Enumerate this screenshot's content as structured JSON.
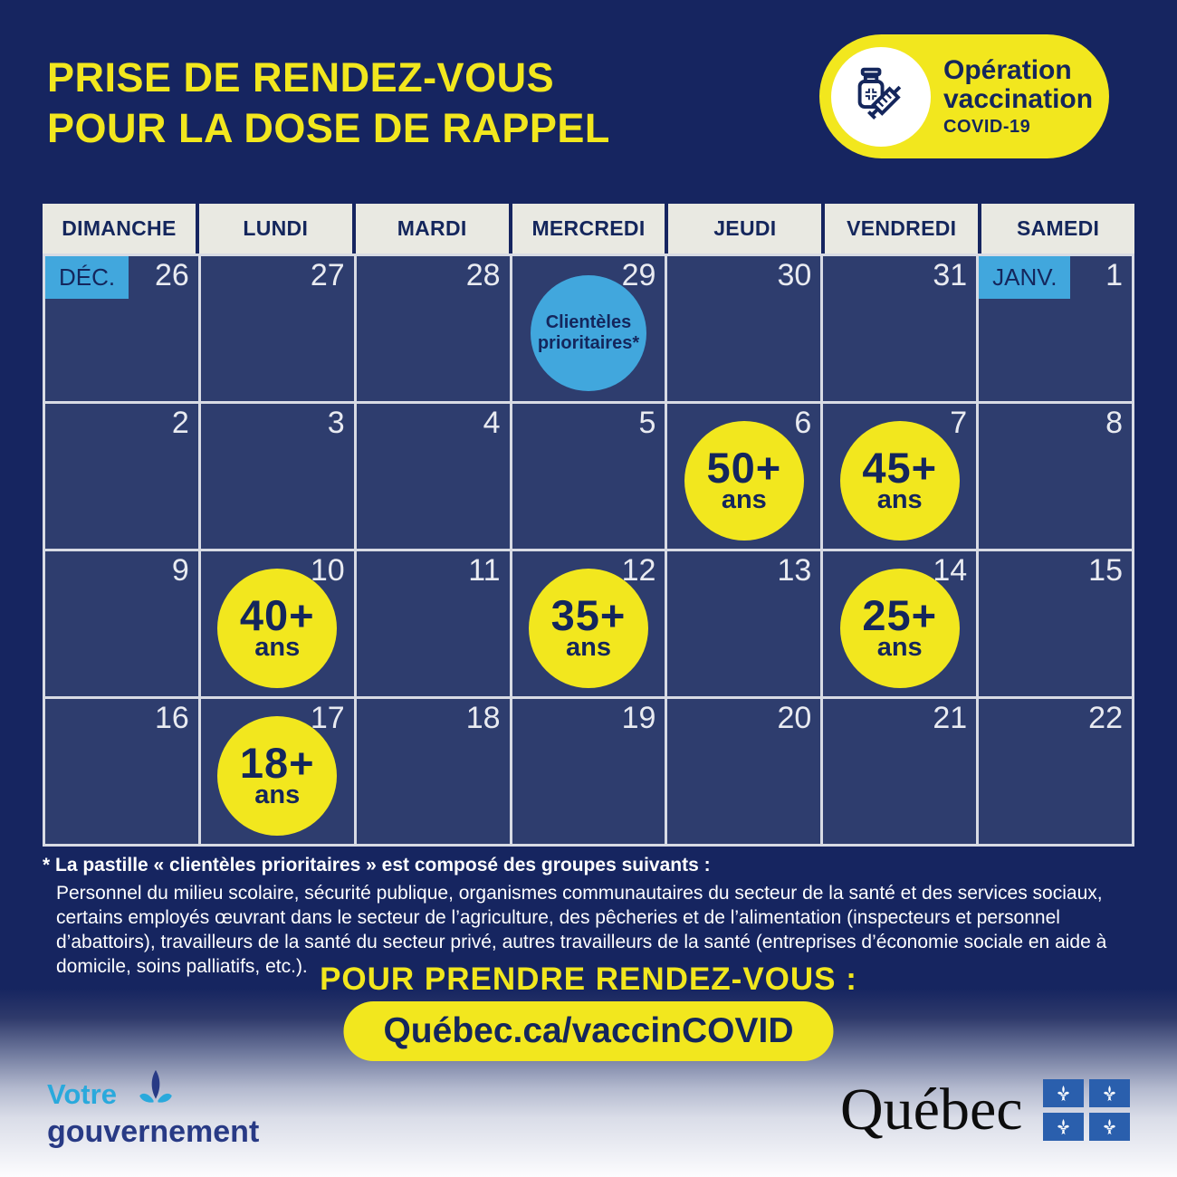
{
  "title": {
    "line1": "PRISE DE RENDEZ-VOUS",
    "line2": "POUR LA DOSE DE RAPPEL"
  },
  "badge": {
    "icon": "vaccine-vial-syringe-icon",
    "line1": "Opération",
    "line2": "vaccination",
    "line3": "COVID-19"
  },
  "calendar": {
    "weekdays": [
      "DIMANCHE",
      "LUNDI",
      "MARDI",
      "MERCREDI",
      "JEUDI",
      "VENDREDI",
      "SAMEDI"
    ],
    "weeks": [
      [
        {
          "day": "26",
          "month_tag": "DÉC."
        },
        {
          "day": "27"
        },
        {
          "day": "28"
        },
        {
          "day": "29",
          "bubble": {
            "type": "blue",
            "lines": [
              "Clientèles",
              "prioritaires*"
            ]
          }
        },
        {
          "day": "30"
        },
        {
          "day": "31"
        },
        {
          "day": "1",
          "month_tag": "JANV."
        }
      ],
      [
        {
          "day": "2"
        },
        {
          "day": "3"
        },
        {
          "day": "4"
        },
        {
          "day": "5"
        },
        {
          "day": "6",
          "bubble": {
            "type": "yellow",
            "age": "50+",
            "unit": "ans"
          }
        },
        {
          "day": "7",
          "bubble": {
            "type": "yellow",
            "age": "45+",
            "unit": "ans"
          }
        },
        {
          "day": "8"
        }
      ],
      [
        {
          "day": "9"
        },
        {
          "day": "10",
          "bubble": {
            "type": "yellow",
            "age": "40+",
            "unit": "ans"
          }
        },
        {
          "day": "11"
        },
        {
          "day": "12",
          "bubble": {
            "type": "yellow",
            "age": "35+",
            "unit": "ans"
          }
        },
        {
          "day": "13"
        },
        {
          "day": "14",
          "bubble": {
            "type": "yellow",
            "age": "25+",
            "unit": "ans"
          }
        },
        {
          "day": "15"
        }
      ],
      [
        {
          "day": "16"
        },
        {
          "day": "17",
          "bubble": {
            "type": "yellow",
            "age": "18+",
            "unit": "ans"
          }
        },
        {
          "day": "18"
        },
        {
          "day": "19"
        },
        {
          "day": "20"
        },
        {
          "day": "21"
        },
        {
          "day": "22"
        }
      ]
    ]
  },
  "footnote": {
    "heading": "* La pastille « clientèles prioritaires » est composé des groupes suivants :",
    "body": "Personnel du milieu scolaire, sécurité publique, organismes communautaires du secteur de la santé et des services sociaux, certains employés œuvrant dans le secteur de l’agriculture, des pêcheries et de l’alimentation (inspecteurs et personnel d’abattoirs), travailleurs de la santé du secteur privé, autres travailleurs de la santé (entreprises d’économie sociale en aide à domicile, soins palliatifs, etc.)."
  },
  "cta": {
    "label": "POUR PRENDRE RENDEZ-VOUS :",
    "link_text": "Québec.ca/vaccinCOVID"
  },
  "footer": {
    "votre": "Votre",
    "gouvernement": "gouvernement",
    "quebec_wordmark": "Québec"
  },
  "colors": {
    "background_navy": "#162560",
    "cell_navy": "#2e3d6e",
    "accent_yellow": "#f2e71e",
    "accent_blue": "#41a7dd",
    "header_gray": "#e9e9e2",
    "navy_text": "#14265c",
    "flag_blue": "#2a5fad",
    "cyan": "#2aa9dc"
  }
}
